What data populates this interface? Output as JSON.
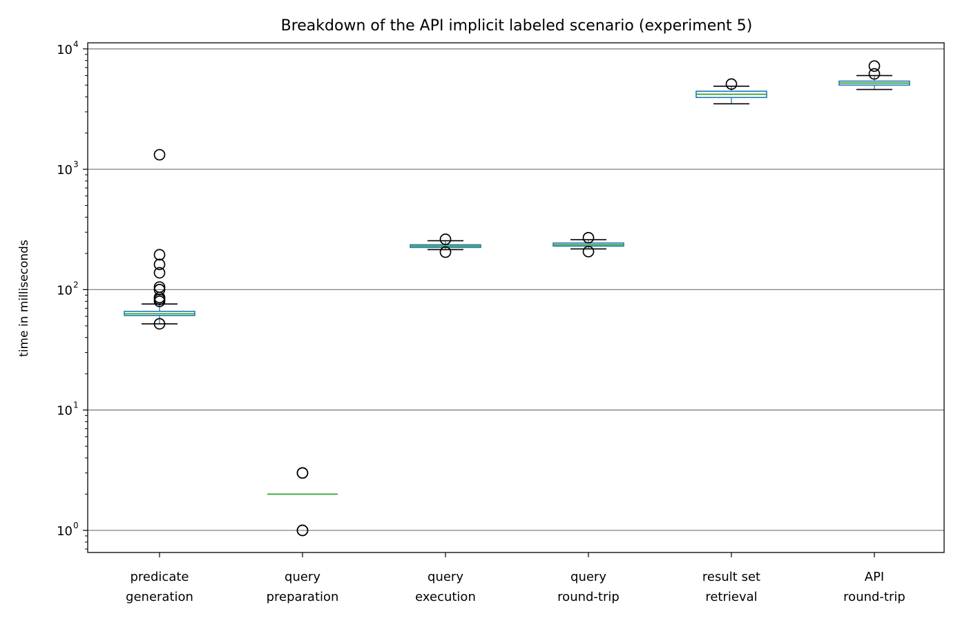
{
  "chart_data": {
    "type": "box",
    "title": "Breakdown of the API implicit labeled scenario (experiment 5)",
    "xlabel": "",
    "ylabel": "time in milliseconds",
    "yscale": "log",
    "ylim": [
      0.65,
      12000
    ],
    "grid": "y-major",
    "y_ticks": [
      {
        "base": "10",
        "exp": "0",
        "value": 1
      },
      {
        "base": "10",
        "exp": "1",
        "value": 10
      },
      {
        "base": "10",
        "exp": "2",
        "value": 100
      },
      {
        "base": "10",
        "exp": "3",
        "value": 1000
      },
      {
        "base": "10",
        "exp": "4",
        "value": 10000
      }
    ],
    "categories": [
      [
        "predicate",
        "generation"
      ],
      [
        "query",
        "preparation"
      ],
      [
        "query",
        "execution"
      ],
      [
        "query",
        "round-trip"
      ],
      [
        "result set",
        "retrieval"
      ],
      [
        "API",
        "round-trip"
      ]
    ],
    "boxes": [
      {
        "q1": 61,
        "median": 63,
        "q3": 66,
        "whisker_low": 52,
        "whisker_high": 76,
        "outliers": [
          52,
          80,
          83,
          86,
          100,
          105,
          138,
          162,
          195,
          1320
        ]
      },
      {
        "q1": 2,
        "median": 2,
        "q3": 2,
        "whisker_low": 2,
        "whisker_high": 2,
        "outliers": [
          1,
          1,
          3,
          3
        ]
      },
      {
        "q1": 224,
        "median": 230,
        "q3": 236,
        "whisker_low": 215,
        "whisker_high": 255,
        "outliers": [
          205,
          262
        ]
      },
      {
        "q1": 230,
        "median": 236,
        "q3": 244,
        "whisker_low": 218,
        "whisker_high": 260,
        "outliers": [
          207,
          270
        ]
      },
      {
        "q1": 3950,
        "median": 4200,
        "q3": 4450,
        "whisker_low": 3500,
        "whisker_high": 4900,
        "outliers": [
          5100
        ]
      },
      {
        "q1": 5000,
        "median": 5200,
        "q3": 5400,
        "whisker_low": 4600,
        "whisker_high": 6000,
        "outliers": [
          6200,
          7200
        ]
      }
    ],
    "colors": {
      "box": "#1f77b4",
      "median": "#2ca02c",
      "whisker": "#1f77b4",
      "cap": "#000000",
      "outlier": "#000000",
      "grid": "#808080",
      "axes": "#000000"
    }
  }
}
